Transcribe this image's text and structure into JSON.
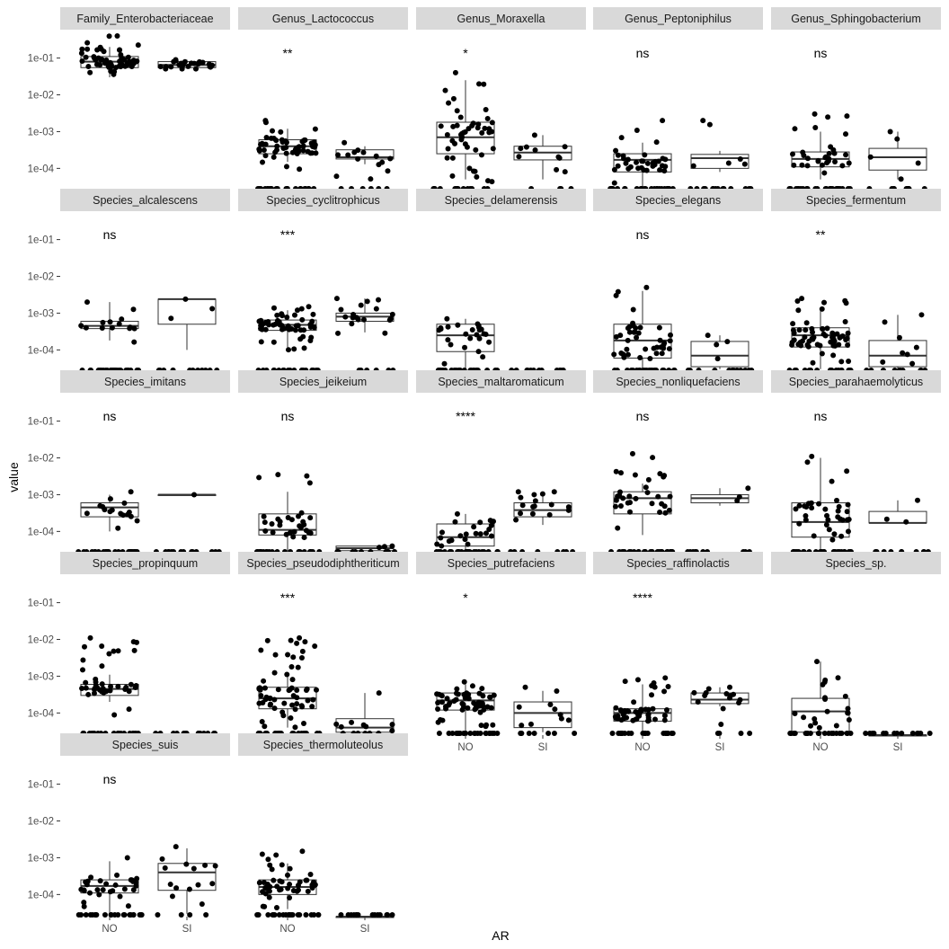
{
  "chart_data": {
    "type": "scatter",
    "subtype": "faceted boxplot with jittered points",
    "xlabel": "AR",
    "ylabel": "value",
    "categories": [
      "NO",
      "SI"
    ],
    "y_scale": "log10",
    "y_ticks": [
      {
        "value": 0.1,
        "label": "1e-01"
      },
      {
        "value": 0.01,
        "label": "1e-02"
      },
      {
        "value": 0.001,
        "label": "1e-03"
      },
      {
        "value": 0.0001,
        "label": "1e-04"
      }
    ],
    "ylim": [
      2.5e-05,
      0.5
    ],
    "colors": {
      "strip": "#d9d9d9",
      "point": "#000000",
      "box": "#333333"
    },
    "facets": [
      {
        "name": "Family_Enterobacteriaceae",
        "sig": "",
        "groups": [
          {
            "cat": "NO",
            "q1": 0.055,
            "median": 0.08,
            "q3": 0.11,
            "wlo": 0.03,
            "whi": 0.2,
            "n": 60,
            "nzero": 0,
            "spread": [
              0.025,
              0.4
            ]
          },
          {
            "cat": "SI",
            "q1": 0.055,
            "median": 0.065,
            "q3": 0.08,
            "wlo": 0.05,
            "whi": 0.09,
            "n": 25,
            "nzero": 0,
            "spread": [
              0.05,
              0.09
            ]
          }
        ]
      },
      {
        "name": "Genus_Lactococcus",
        "sig": "**",
        "groups": [
          {
            "cat": "NO",
            "q1": 0.00025,
            "median": 0.0004,
            "q3": 0.0006,
            "wlo": 0.00015,
            "whi": 0.0012,
            "n": 55,
            "nzero": 22,
            "spread": [
              8e-05,
              0.002
            ]
          },
          {
            "cat": "SI",
            "q1": 0.00018,
            "median": 0.0002,
            "q3": 0.00032,
            "wlo": 0.00013,
            "whi": 0.0004,
            "n": 14,
            "nzero": 6,
            "spread": [
              4e-05,
              0.0005
            ]
          }
        ]
      },
      {
        "name": "Genus_Moraxella",
        "sig": "*",
        "groups": [
          {
            "cat": "NO",
            "q1": 0.00025,
            "median": 0.0007,
            "q3": 0.0018,
            "wlo": 5e-05,
            "whi": 0.025,
            "n": 48,
            "nzero": 14,
            "spread": [
              4e-05,
              0.04
            ]
          },
          {
            "cat": "SI",
            "q1": 0.00017,
            "median": 0.00027,
            "q3": 0.0004,
            "wlo": 5e-05,
            "whi": 0.0008,
            "n": 10,
            "nzero": 4,
            "spread": [
              4e-05,
              0.0008
            ]
          }
        ]
      },
      {
        "name": "Genus_Peptoniphilus",
        "sig": "ns",
        "groups": [
          {
            "cat": "NO",
            "q1": 8e-05,
            "median": 0.00017,
            "q3": 0.00025,
            "wlo": 3e-05,
            "whi": 0.0005,
            "n": 35,
            "nzero": 25,
            "spread": [
              4e-05,
              0.002
            ]
          },
          {
            "cat": "SI",
            "q1": 0.0001,
            "median": 0.00019,
            "q3": 0.00024,
            "wlo": 8e-05,
            "whi": 0.0003,
            "n": 6,
            "nzero": 14,
            "spread": [
              8e-05,
              0.002
            ]
          }
        ]
      },
      {
        "name": "Genus_Sphingobacterium",
        "sig": "ns",
        "groups": [
          {
            "cat": "NO",
            "q1": 0.00011,
            "median": 0.00018,
            "q3": 0.00028,
            "wlo": 5e-05,
            "whi": 0.001,
            "n": 30,
            "nzero": 25,
            "spread": [
              4e-05,
              0.003
            ]
          },
          {
            "cat": "SI",
            "q1": 9e-05,
            "median": 0.0002,
            "q3": 0.00035,
            "wlo": 5e-05,
            "whi": 0.001,
            "n": 5,
            "nzero": 10,
            "spread": [
              5e-05,
              0.001
            ]
          }
        ]
      },
      {
        "name": "Species_alcalescens",
        "sig": "ns",
        "groups": [
          {
            "cat": "NO",
            "q1": 0.00038,
            "median": 0.00045,
            "q3": 0.0006,
            "wlo": 0.00018,
            "whi": 0.002,
            "n": 14,
            "nzero": 28,
            "spread": [
              0.00015,
              0.002
            ]
          },
          {
            "cat": "SI",
            "q1": 0.0005,
            "median": 0.0024,
            "q3": 0.0024,
            "wlo": 0.0001,
            "whi": 0.0024,
            "n": 3,
            "nzero": 12,
            "spread": [
              0.0001,
              0.0024
            ]
          }
        ]
      },
      {
        "name": "Species_cyclitrophicus",
        "sig": "***",
        "groups": [
          {
            "cat": "NO",
            "q1": 0.00034,
            "median": 0.00048,
            "q3": 0.00065,
            "wlo": 0.0001,
            "whi": 0.0012,
            "n": 55,
            "nzero": 22,
            "spread": [
              0.0001,
              0.0015
            ]
          },
          {
            "cat": "SI",
            "q1": 0.0006,
            "median": 0.0008,
            "q3": 0.001,
            "wlo": 0.0003,
            "whi": 0.0025,
            "n": 18,
            "nzero": 6,
            "spread": [
              0.0002,
              0.0025
            ]
          }
        ]
      },
      {
        "name": "Species_delamerensis",
        "sig": "",
        "groups": [
          {
            "cat": "NO",
            "q1": 9e-05,
            "median": 0.00025,
            "q3": 0.0005,
            "wlo": 3e-05,
            "whi": 0.0007,
            "n": 25,
            "nzero": 25,
            "spread": [
              4e-05,
              0.0007
            ]
          },
          {
            "cat": "SI",
            "q1": 2.5e-05,
            "median": 2.5e-05,
            "q3": 2.5e-05,
            "wlo": 2.5e-05,
            "whi": 2.5e-05,
            "n": 0,
            "nzero": 14,
            "spread": [
              2.5e-05,
              2.5e-05
            ]
          }
        ]
      },
      {
        "name": "Species_elegans",
        "sig": "ns",
        "groups": [
          {
            "cat": "NO",
            "q1": 6e-05,
            "median": 0.00018,
            "q3": 0.0005,
            "wlo": 3e-05,
            "whi": 0.004,
            "n": 40,
            "nzero": 22,
            "spread": [
              4e-05,
              0.005
            ]
          },
          {
            "cat": "SI",
            "q1": 3.5e-05,
            "median": 7e-05,
            "q3": 0.00017,
            "wlo": 3e-05,
            "whi": 0.00025,
            "n": 4,
            "nzero": 14,
            "spread": [
              4e-05,
              0.00025
            ]
          }
        ]
      },
      {
        "name": "Species_fermentum",
        "sig": "**",
        "groups": [
          {
            "cat": "NO",
            "q1": 0.00012,
            "median": 0.00025,
            "q3": 0.0004,
            "wlo": 3e-05,
            "whi": 0.0012,
            "n": 60,
            "nzero": 18,
            "spread": [
              4e-05,
              0.0025
            ]
          },
          {
            "cat": "SI",
            "q1": 3.5e-05,
            "median": 7e-05,
            "q3": 0.00018,
            "wlo": 3e-05,
            "whi": 0.0009,
            "n": 8,
            "nzero": 10,
            "spread": [
              4e-05,
              0.0009
            ]
          }
        ]
      },
      {
        "name": "Species_imitans",
        "sig": "ns",
        "groups": [
          {
            "cat": "NO",
            "q1": 0.00025,
            "median": 0.00045,
            "q3": 0.0006,
            "wlo": 0.0001,
            "whi": 0.001,
            "n": 16,
            "nzero": 25,
            "spread": [
              0.0001,
              0.0012
            ]
          },
          {
            "cat": "SI",
            "q1": 0.001,
            "median": 0.001,
            "q3": 0.001,
            "wlo": 0.001,
            "whi": 0.001,
            "n": 1,
            "nzero": 14,
            "spread": [
              0.001,
              0.001
            ]
          }
        ]
      },
      {
        "name": "Species_jeikeium",
        "sig": "ns",
        "groups": [
          {
            "cat": "NO",
            "q1": 8e-05,
            "median": 0.00011,
            "q3": 0.0003,
            "wlo": 3e-05,
            "whi": 0.0012,
            "n": 30,
            "nzero": 22,
            "spread": [
              4e-05,
              0.0035
            ]
          },
          {
            "cat": "SI",
            "q1": 3e-05,
            "median": 3.5e-05,
            "q3": 4e-05,
            "wlo": 3e-05,
            "whi": 4e-05,
            "n": 3,
            "nzero": 10,
            "spread": [
              3.5e-05,
              4e-05
            ]
          }
        ]
      },
      {
        "name": "Species_maltaromaticum",
        "sig": "****",
        "groups": [
          {
            "cat": "NO",
            "q1": 4e-05,
            "median": 7e-05,
            "q3": 0.00016,
            "wlo": 3e-05,
            "whi": 0.0003,
            "n": 22,
            "nzero": 24,
            "spread": [
              4e-05,
              0.0003
            ]
          },
          {
            "cat": "SI",
            "q1": 0.00025,
            "median": 0.00038,
            "q3": 0.0006,
            "wlo": 0.00015,
            "whi": 0.0012,
            "n": 16,
            "nzero": 8,
            "spread": [
              0.00015,
              0.0012
            ]
          }
        ]
      },
      {
        "name": "Species_nonliquefaciens",
        "sig": "ns",
        "groups": [
          {
            "cat": "NO",
            "q1": 0.0003,
            "median": 0.0008,
            "q3": 0.0012,
            "wlo": 8e-05,
            "whi": 0.002,
            "n": 32,
            "nzero": 28,
            "spread": [
              8e-05,
              0.013
            ]
          },
          {
            "cat": "SI",
            "q1": 0.0006,
            "median": 0.0008,
            "q3": 0.001,
            "wlo": 0.0005,
            "whi": 0.0015,
            "n": 3,
            "nzero": 10,
            "spread": [
              0.0005,
              0.0015
            ]
          }
        ]
      },
      {
        "name": "Species_parahaemolyticus",
        "sig": "ns",
        "groups": [
          {
            "cat": "NO",
            "q1": 7e-05,
            "median": 0.00018,
            "q3": 0.0006,
            "wlo": 3e-05,
            "whi": 0.01,
            "n": 35,
            "nzero": 25,
            "spread": [
              4e-05,
              0.011
            ]
          },
          {
            "cat": "SI",
            "q1": 0.00017,
            "median": 0.00017,
            "q3": 0.00035,
            "wlo": 0.00017,
            "whi": 0.0007,
            "n": 3,
            "nzero": 10,
            "spread": [
              0.00017,
              0.0007
            ]
          }
        ]
      },
      {
        "name": "Species_propinquum",
        "sig": "",
        "groups": [
          {
            "cat": "NO",
            "q1": 0.0003,
            "median": 0.00045,
            "q3": 0.0006,
            "wlo": 0.0002,
            "whi": 0.0011,
            "n": 40,
            "nzero": 22,
            "spread": [
              4e-05,
              0.011
            ]
          },
          {
            "cat": "SI",
            "q1": 2.5e-05,
            "median": 2.5e-05,
            "q3": 2.5e-05,
            "wlo": 2.5e-05,
            "whi": 2.5e-05,
            "n": 0,
            "nzero": 14,
            "spread": [
              2.5e-05,
              2.5e-05
            ]
          }
        ]
      },
      {
        "name": "Species_pseudodiphtheriticum",
        "sig": "***",
        "groups": [
          {
            "cat": "NO",
            "q1": 0.00013,
            "median": 0.00025,
            "q3": 0.0005,
            "wlo": 4e-05,
            "whi": 0.0012,
            "n": 60,
            "nzero": 22,
            "spread": [
              4e-05,
              0.011
            ]
          },
          {
            "cat": "SI",
            "q1": 3e-05,
            "median": 4e-05,
            "q3": 7e-05,
            "wlo": 3e-05,
            "whi": 0.00035,
            "n": 8,
            "nzero": 6,
            "spread": [
              4e-05,
              0.00035
            ]
          }
        ]
      },
      {
        "name": "Species_putrefaciens",
        "sig": "*",
        "groups": [
          {
            "cat": "NO",
            "q1": 0.00012,
            "median": 0.00022,
            "q3": 0.00035,
            "wlo": 3e-05,
            "whi": 0.0006,
            "n": 60,
            "nzero": 22,
            "spread": [
              4e-05,
              0.0007
            ]
          },
          {
            "cat": "SI",
            "q1": 4e-05,
            "median": 0.0001,
            "q3": 0.0002,
            "wlo": 3e-05,
            "whi": 0.0004,
            "n": 10,
            "nzero": 8,
            "spread": [
              4e-05,
              0.0005
            ]
          }
        ]
      },
      {
        "name": "Species_raffinolactis",
        "sig": "****",
        "groups": [
          {
            "cat": "NO",
            "q1": 6e-05,
            "median": 0.0001,
            "q3": 0.00013,
            "wlo": 3e-05,
            "whi": 0.0006,
            "n": 50,
            "nzero": 22,
            "spread": [
              4e-05,
              0.0009
            ]
          },
          {
            "cat": "SI",
            "q1": 0.00018,
            "median": 0.00023,
            "q3": 0.00035,
            "wlo": 0.00015,
            "whi": 0.0005,
            "n": 14,
            "nzero": 4,
            "spread": [
              4e-05,
              0.0005
            ]
          }
        ]
      },
      {
        "name": "Species_sp.",
        "sig": "",
        "groups": [
          {
            "cat": "NO",
            "q1": 3e-05,
            "median": 0.00011,
            "q3": 0.00025,
            "wlo": 3e-05,
            "whi": 0.0025,
            "n": 20,
            "nzero": 22,
            "spread": [
              4e-05,
              0.0025
            ]
          },
          {
            "cat": "SI",
            "q1": 2.5e-05,
            "median": 2.5e-05,
            "q3": 2.5e-05,
            "wlo": 2.5e-05,
            "whi": 2.5e-05,
            "n": 0,
            "nzero": 14,
            "spread": [
              2.5e-05,
              2.5e-05
            ]
          }
        ]
      },
      {
        "name": "Species_suis",
        "sig": "ns",
        "groups": [
          {
            "cat": "NO",
            "q1": 0.00011,
            "median": 0.00017,
            "q3": 0.00025,
            "wlo": 3e-05,
            "whi": 0.0008,
            "n": 30,
            "nzero": 22,
            "spread": [
              4e-05,
              0.001
            ]
          },
          {
            "cat": "SI",
            "q1": 0.00013,
            "median": 0.0004,
            "q3": 0.0007,
            "wlo": 3e-05,
            "whi": 0.0018,
            "n": 14,
            "nzero": 4,
            "spread": [
              4e-05,
              0.002
            ]
          }
        ]
      },
      {
        "name": "Species_thermoluteolus",
        "sig": "",
        "groups": [
          {
            "cat": "NO",
            "q1": 0.0001,
            "median": 0.00016,
            "q3": 0.00025,
            "wlo": 4e-05,
            "whi": 0.0007,
            "n": 45,
            "nzero": 22,
            "spread": [
              4e-05,
              0.0015
            ]
          },
          {
            "cat": "SI",
            "q1": 2.5e-05,
            "median": 2.5e-05,
            "q3": 2.5e-05,
            "wlo": 2.5e-05,
            "whi": 2.5e-05,
            "n": 0,
            "nzero": 14,
            "spread": [
              2.5e-05,
              2.5e-05
            ]
          }
        ]
      }
    ]
  }
}
